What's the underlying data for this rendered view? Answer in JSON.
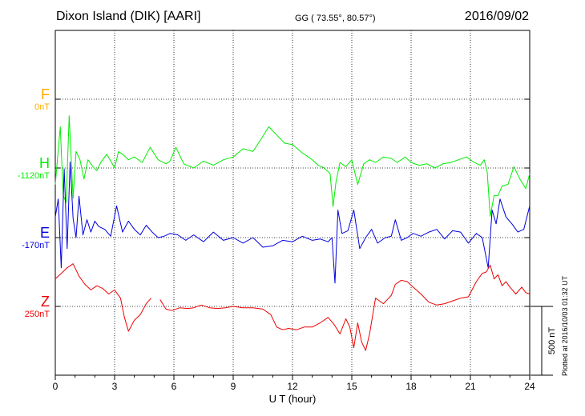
{
  "header": {
    "station": "Dixon Island (DIK)  [AARI]",
    "coords": "GG ( 73.55°,  80.57°)",
    "date": "2016/09/02"
  },
  "plotted_note": "Plotted at 2016/10/03 01:32 UT",
  "colors": {
    "F": "#ffaa00",
    "H": "#00ee00",
    "E": "#0000dd",
    "Z": "#ee0000"
  },
  "chart_data": {
    "type": "line",
    "xlabel": "U T (hour)",
    "xlim": [
      0,
      24
    ],
    "xticks": [
      "0",
      "3",
      "6",
      "9",
      "12",
      "15",
      "18",
      "21",
      "24"
    ],
    "scale_label": "500 nT",
    "scale_nT": 500,
    "grid": true,
    "components": [
      {
        "name": "F",
        "baseline": "0nT"
      },
      {
        "name": "H",
        "baseline": "-1120nT"
      },
      {
        "name": "E",
        "baseline": "-170nT"
      },
      {
        "name": "Z",
        "baseline": "250nT"
      }
    ],
    "series": [
      {
        "name": "H",
        "x": [
          0,
          0.25,
          0.4,
          0.55,
          0.7,
          0.9,
          1.05,
          1.25,
          1.45,
          1.65,
          1.9,
          2.1,
          2.3,
          2.6,
          2.85,
          3.0,
          3.2,
          3.4,
          3.7,
          4.0,
          4.4,
          4.8,
          5.2,
          5.6,
          5.8,
          6.1,
          6.5,
          7.0,
          7.5,
          8.0,
          8.5,
          9.0,
          9.5,
          10.0,
          10.5,
          10.8,
          11.2,
          11.6,
          12.0,
          12.5,
          13.0,
          13.3,
          13.6,
          13.9,
          14.05,
          14.2,
          14.4,
          14.7,
          15.0,
          15.3,
          15.6,
          15.9,
          16.2,
          16.6,
          17.0,
          17.3,
          17.7,
          18.0,
          18.4,
          18.8,
          19.2,
          19.6,
          20.0,
          20.4,
          20.8,
          21.2,
          21.5,
          21.7,
          21.85,
          22.0,
          22.2,
          22.4,
          22.6,
          22.9,
          23.2,
          23.5,
          23.8,
          24.0
        ],
        "values": [
          -120,
          300,
          -200,
          -250,
          380,
          -220,
          120,
          60,
          -80,
          60,
          10,
          -20,
          40,
          100,
          40,
          0,
          120,
          100,
          60,
          80,
          40,
          150,
          60,
          30,
          50,
          150,
          30,
          0,
          50,
          20,
          60,
          80,
          140,
          120,
          230,
          300,
          240,
          180,
          170,
          110,
          60,
          20,
          0,
          -40,
          -280,
          -100,
          40,
          10,
          60,
          -120,
          30,
          60,
          40,
          80,
          70,
          40,
          80,
          40,
          20,
          30,
          0,
          30,
          40,
          60,
          80,
          40,
          20,
          60,
          -30,
          -350,
          -200,
          -200,
          -130,
          -120,
          10,
          -80,
          -150,
          -40
        ]
      },
      {
        "name": "E",
        "x": [
          0,
          0.15,
          0.3,
          0.45,
          0.6,
          0.75,
          0.9,
          1.05,
          1.2,
          1.4,
          1.6,
          1.8,
          2.0,
          2.2,
          2.5,
          2.8,
          3.1,
          3.4,
          3.7,
          4.0,
          4.3,
          4.6,
          4.9,
          5.2,
          5.5,
          5.8,
          6.2,
          6.6,
          7.0,
          7.5,
          8.0,
          8.5,
          9.0,
          9.5,
          10.0,
          10.5,
          11.0,
          11.5,
          12.0,
          12.5,
          13.0,
          13.4,
          13.8,
          14.0,
          14.15,
          14.3,
          14.5,
          14.8,
          15.1,
          15.4,
          15.7,
          16.0,
          16.3,
          16.7,
          17.0,
          17.2,
          17.5,
          17.8,
          18.1,
          18.5,
          18.9,
          19.3,
          19.7,
          20.1,
          20.5,
          20.9,
          21.3,
          21.6,
          21.9,
          22.1,
          22.3,
          22.5,
          22.8,
          23.1,
          23.4,
          23.7,
          24.0
        ],
        "values": [
          150,
          280,
          -220,
          500,
          -80,
          550,
          140,
          0,
          300,
          20,
          130,
          40,
          120,
          80,
          60,
          10,
          230,
          40,
          120,
          60,
          20,
          90,
          40,
          0,
          10,
          30,
          20,
          -20,
          20,
          -30,
          40,
          -20,
          0,
          -40,
          0,
          -70,
          -60,
          -20,
          -30,
          10,
          -20,
          -10,
          -30,
          0,
          -330,
          200,
          30,
          50,
          200,
          -80,
          0,
          60,
          -40,
          0,
          10,
          130,
          -20,
          0,
          30,
          10,
          40,
          60,
          -10,
          50,
          40,
          -40,
          30,
          0,
          -220,
          200,
          100,
          280,
          150,
          100,
          40,
          60,
          230
        ]
      },
      {
        "name": "Z",
        "x": [
          0,
          0.3,
          0.6,
          0.9,
          1.2,
          1.5,
          1.8,
          2.1,
          2.4,
          2.7,
          3.0,
          3.3,
          3.5,
          3.7,
          4.0,
          4.3,
          4.6,
          4.85
        ],
        "values": [
          200,
          240,
          280,
          310,
          220,
          160,
          120,
          150,
          130,
          90,
          120,
          60,
          -80,
          -180,
          -100,
          -60,
          20,
          60
        ]
      },
      {
        "name": "Z2",
        "x": [
          5.3,
          5.6,
          5.9,
          6.3,
          6.7,
          7.0,
          7.4,
          7.8,
          8.2,
          8.6,
          9.0,
          9.5,
          10.0,
          10.5,
          10.9,
          11.2,
          11.5,
          11.8,
          12.2,
          12.6,
          13.0,
          13.4,
          13.8,
          14.1,
          14.4,
          14.7,
          14.9,
          15.1,
          15.3,
          15.5,
          15.7,
          15.9,
          16.2,
          16.6,
          17.0,
          17.2,
          17.5,
          17.8,
          18.1,
          18.5,
          18.9,
          19.3,
          19.7,
          20.1,
          20.5,
          20.9,
          21.3,
          21.6,
          21.8,
          22.0,
          22.2,
          22.4,
          22.6,
          22.8,
          23.0,
          23.3,
          23.6,
          23.8,
          24.0
        ],
        "values": [
          50,
          -20,
          -30,
          -10,
          -15,
          -10,
          10,
          -10,
          -15,
          -10,
          0,
          -10,
          -10,
          -20,
          -60,
          -150,
          -170,
          -160,
          -170,
          -150,
          -150,
          -120,
          -80,
          -130,
          -200,
          -90,
          -150,
          -300,
          -120,
          -260,
          -320,
          -200,
          60,
          20,
          80,
          160,
          190,
          180,
          140,
          90,
          30,
          10,
          20,
          40,
          60,
          70,
          180,
          240,
          250,
          300,
          200,
          230,
          150,
          180,
          140,
          90,
          140,
          100,
          90
        ]
      }
    ]
  }
}
